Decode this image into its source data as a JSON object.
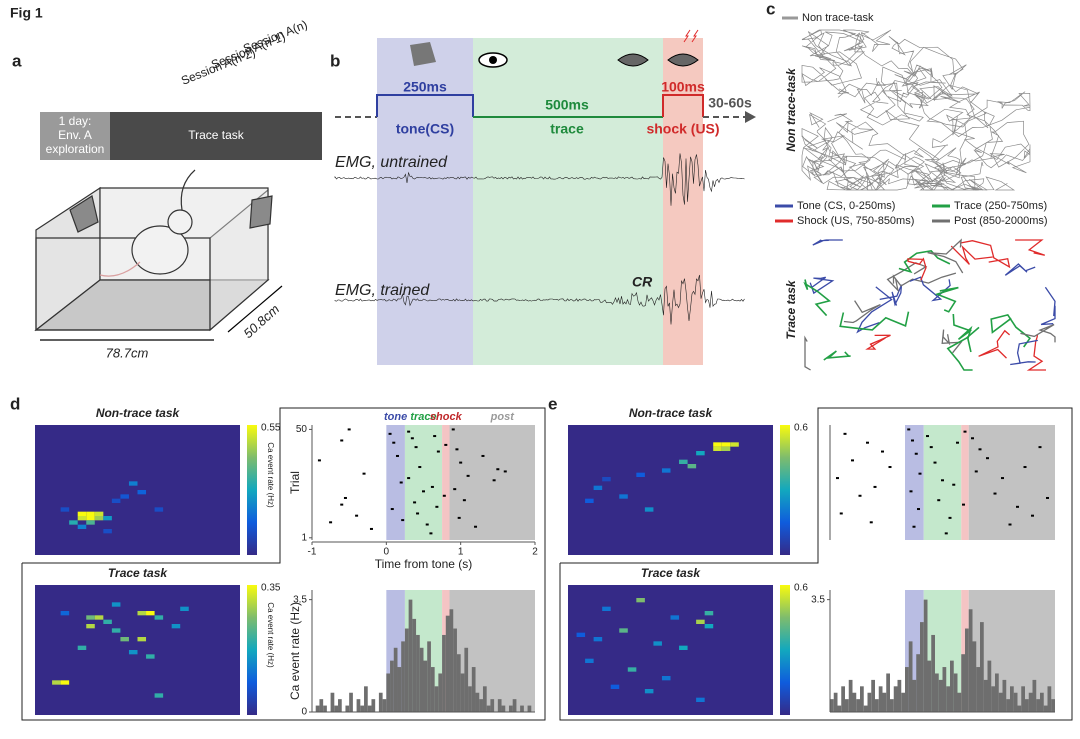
{
  "figure_title": "Fig 1",
  "panel_a": {
    "label": "a",
    "sessions": [
      "Session A(n-2)",
      "Session A(n-1)",
      "Session A(n)"
    ],
    "exploration": [
      "1 day:",
      "Env. A",
      "exploration"
    ],
    "task": "Trace task",
    "width": "78.7cm",
    "depth": "50.8cm"
  },
  "panel_b": {
    "label": "b",
    "durations": [
      "250ms",
      "500ms",
      "100ms",
      "30-60s"
    ],
    "phases": [
      "tone(CS)",
      "trace",
      "shock (US)"
    ],
    "emg": [
      "EMG, untrained",
      "EMG, trained"
    ],
    "cr": "CR"
  },
  "panel_c": {
    "label": "c",
    "legend_top": "Non trace-task",
    "row_labels": [
      "Non trace-task",
      "Trace task"
    ],
    "legend": [
      {
        "name": "Tone (CS, 0-250ms)",
        "color": "#3b4ba8"
      },
      {
        "name": "Trace (250-750ms)",
        "color": "#22a045"
      },
      {
        "name": "Shock (US, 750-850ms)",
        "color": "#e02b2b"
      },
      {
        "name": "Post (850-2000ms)",
        "color": "#707070"
      }
    ]
  },
  "panel_d": {
    "label": "d",
    "heatmaps": [
      {
        "title": "Non-trace task",
        "cbar_max": 0.55,
        "cbar_label": "Ca event rate (Hz)",
        "cells": [
          [
            5,
            20,
            0.55
          ],
          [
            6,
            20,
            0.55
          ],
          [
            7,
            20,
            0.5
          ],
          [
            5,
            21,
            0.5
          ],
          [
            6,
            21,
            0.55
          ],
          [
            7,
            21,
            0.45
          ],
          [
            4,
            22,
            0.3
          ],
          [
            8,
            21,
            0.25
          ],
          [
            6,
            22,
            0.35
          ],
          [
            5,
            23,
            0.2
          ],
          [
            11,
            13,
            0.2
          ],
          [
            12,
            15,
            0.15
          ],
          [
            10,
            16,
            0.12
          ],
          [
            9,
            17,
            0.1
          ],
          [
            14,
            19,
            0.1
          ],
          [
            3,
            19,
            0.1
          ],
          [
            8,
            24,
            0.1
          ]
        ]
      },
      {
        "title": "Trace task",
        "cbar_max": 0.35,
        "cbar_label": "Ca event rate (Hz)",
        "cells": [
          [
            3,
            6,
            0.1
          ],
          [
            6,
            7,
            0.25
          ],
          [
            7,
            7,
            0.3
          ],
          [
            8,
            8,
            0.2
          ],
          [
            12,
            6,
            0.3
          ],
          [
            13,
            6,
            0.35
          ],
          [
            14,
            7,
            0.2
          ],
          [
            6,
            9,
            0.3
          ],
          [
            9,
            10,
            0.2
          ],
          [
            16,
            9,
            0.15
          ],
          [
            10,
            12,
            0.25
          ],
          [
            12,
            12,
            0.3
          ],
          [
            5,
            14,
            0.2
          ],
          [
            11,
            15,
            0.15
          ],
          [
            13,
            16,
            0.2
          ],
          [
            2,
            22,
            0.3
          ],
          [
            3,
            22,
            0.35
          ],
          [
            14,
            25,
            0.2
          ],
          [
            17,
            5,
            0.15
          ],
          [
            9,
            4,
            0.15
          ]
        ]
      }
    ],
    "raster": {
      "xlim": [
        -1,
        2
      ],
      "xticks": [
        -1,
        0,
        1,
        2
      ],
      "xlabel": "Time from tone (s)",
      "ylabel": "Trial",
      "ylim": [
        0,
        52
      ],
      "yticks": [
        50,
        1
      ],
      "windows": [
        {
          "label": "tone",
          "start": 0,
          "end": 0.25,
          "color": "#b9bde3",
          "label_color": "#3b4ba8"
        },
        {
          "label": "trace",
          "start": 0.25,
          "end": 0.75,
          "color": "#c4e8cc",
          "label_color": "#22a045"
        },
        {
          "label": "shock",
          "start": 0.75,
          "end": 0.85,
          "color": "#f4c4c4",
          "label_color": "#c0282b"
        },
        {
          "label": "post",
          "start": 0.85,
          "end": 2,
          "color": "#c2c2c2",
          "label_color": "#9a9a9a"
        }
      ],
      "events": [
        [
          -0.5,
          50
        ],
        [
          -0.6,
          45
        ],
        [
          -0.9,
          36
        ],
        [
          -0.3,
          30
        ],
        [
          -0.55,
          19
        ],
        [
          -0.6,
          16
        ],
        [
          -0.4,
          11
        ],
        [
          -0.75,
          8
        ],
        [
          -0.2,
          5
        ],
        [
          0.05,
          48
        ],
        [
          0.1,
          44
        ],
        [
          0.15,
          38
        ],
        [
          0.2,
          26
        ],
        [
          0.08,
          14
        ],
        [
          0.22,
          9
        ],
        [
          0.3,
          49
        ],
        [
          0.35,
          46
        ],
        [
          0.4,
          42
        ],
        [
          0.45,
          33
        ],
        [
          0.3,
          28
        ],
        [
          0.5,
          22
        ],
        [
          0.38,
          17
        ],
        [
          0.42,
          12
        ],
        [
          0.55,
          7
        ],
        [
          0.6,
          3
        ],
        [
          0.65,
          47
        ],
        [
          0.7,
          40
        ],
        [
          0.62,
          24
        ],
        [
          0.68,
          15
        ],
        [
          0.8,
          43
        ],
        [
          0.78,
          20
        ],
        [
          0.9,
          50
        ],
        [
          0.95,
          41
        ],
        [
          1.0,
          35
        ],
        [
          1.1,
          29
        ],
        [
          0.92,
          23
        ],
        [
          1.05,
          18
        ],
        [
          0.98,
          10
        ],
        [
          1.2,
          6
        ],
        [
          1.3,
          38
        ],
        [
          1.5,
          32
        ],
        [
          1.45,
          27
        ],
        [
          1.6,
          31
        ]
      ]
    },
    "histogram": {
      "ylabel": "Ca event rate (Hz)",
      "ylim": [
        0,
        3.8
      ],
      "yticks": [
        3.5,
        0
      ],
      "counts": [
        0,
        0.2,
        0.4,
        0.2,
        0,
        0.6,
        0.2,
        0.4,
        0,
        0.2,
        0.6,
        0,
        0.4,
        0.2,
        0.8,
        0.2,
        0.4,
        0,
        0.6,
        0.4,
        1.2,
        1.6,
        2.0,
        1.4,
        2.2,
        2.6,
        3.5,
        2.9,
        2.4,
        2.0,
        1.6,
        2.2,
        1.4,
        0.8,
        1.2,
        2.4,
        3.0,
        3.2,
        2.6,
        1.8,
        1.2,
        2.0,
        0.8,
        1.4,
        0.6,
        0.4,
        0.8,
        0.2,
        0.4,
        0,
        0.4,
        0.2,
        0,
        0.2,
        0.4,
        0,
        0.2,
        0,
        0.2,
        0
      ]
    }
  },
  "panel_e": {
    "label": "e",
    "heatmaps": [
      {
        "title": "Non-trace task",
        "cbar_max": 0.6,
        "cells": [
          [
            17,
            4,
            0.6
          ],
          [
            18,
            4,
            0.6
          ],
          [
            19,
            4,
            0.55
          ],
          [
            17,
            5,
            0.55
          ],
          [
            18,
            5,
            0.5
          ],
          [
            15,
            6,
            0.3
          ],
          [
            13,
            8,
            0.35
          ],
          [
            14,
            9,
            0.4
          ],
          [
            8,
            11,
            0.15
          ],
          [
            3,
            14,
            0.2
          ],
          [
            6,
            16,
            0.2
          ],
          [
            2,
            17,
            0.15
          ],
          [
            9,
            19,
            0.25
          ],
          [
            4,
            12,
            0.1
          ],
          [
            11,
            10,
            0.2
          ]
        ]
      },
      {
        "title": "Trace task",
        "cbar_max": 0.6,
        "cells": [
          [
            8,
            3,
            0.45
          ],
          [
            4,
            5,
            0.2
          ],
          [
            16,
            6,
            0.35
          ],
          [
            12,
            7,
            0.2
          ],
          [
            15,
            8,
            0.5
          ],
          [
            6,
            10,
            0.4
          ],
          [
            16,
            9,
            0.3
          ],
          [
            3,
            12,
            0.2
          ],
          [
            10,
            13,
            0.25
          ],
          [
            13,
            14,
            0.3
          ],
          [
            2,
            17,
            0.2
          ],
          [
            7,
            19,
            0.35
          ],
          [
            11,
            21,
            0.2
          ],
          [
            5,
            23,
            0.15
          ],
          [
            9,
            24,
            0.25
          ],
          [
            15,
            26,
            0.2
          ],
          [
            1,
            11,
            0.15
          ]
        ]
      }
    ],
    "raster": {
      "xlim": [
        -1,
        2
      ],
      "ylim": [
        0,
        52
      ],
      "windows": [
        {
          "start": 0,
          "end": 0.25,
          "color": "#b9bde3"
        },
        {
          "start": 0.25,
          "end": 0.75,
          "color": "#c4e8cc"
        },
        {
          "start": 0.75,
          "end": 0.85,
          "color": "#f4c4c4"
        },
        {
          "start": 0.85,
          "end": 2,
          "color": "#c2c2c2"
        }
      ],
      "events": [
        [
          -0.8,
          48
        ],
        [
          -0.5,
          44
        ],
        [
          -0.3,
          40
        ],
        [
          -0.7,
          36
        ],
        [
          -0.2,
          33
        ],
        [
          -0.9,
          28
        ],
        [
          -0.4,
          24
        ],
        [
          -0.6,
          20
        ],
        [
          -0.85,
          12
        ],
        [
          -0.45,
          8
        ],
        [
          0.05,
          50
        ],
        [
          0.1,
          45
        ],
        [
          0.15,
          39
        ],
        [
          0.2,
          30
        ],
        [
          0.08,
          22
        ],
        [
          0.18,
          14
        ],
        [
          0.12,
          6
        ],
        [
          0.3,
          47
        ],
        [
          0.35,
          42
        ],
        [
          0.4,
          35
        ],
        [
          0.5,
          27
        ],
        [
          0.45,
          18
        ],
        [
          0.6,
          10
        ],
        [
          0.55,
          3
        ],
        [
          0.7,
          44
        ],
        [
          0.65,
          25
        ],
        [
          0.8,
          49
        ],
        [
          0.78,
          16
        ],
        [
          0.9,
          46
        ],
        [
          1.0,
          41
        ],
        [
          1.1,
          37
        ],
        [
          0.95,
          31
        ],
        [
          1.3,
          28
        ],
        [
          1.2,
          21
        ],
        [
          1.5,
          15
        ],
        [
          1.7,
          11
        ],
        [
          1.4,
          7
        ],
        [
          1.9,
          19
        ],
        [
          1.6,
          33
        ],
        [
          1.8,
          42
        ]
      ]
    },
    "histogram": {
      "ylim": [
        0,
        3.8
      ],
      "yticks": [
        3.5
      ],
      "counts": [
        0.4,
        0.6,
        0.2,
        0.8,
        0.4,
        1.0,
        0.6,
        0.4,
        0.8,
        0.2,
        0.6,
        1.0,
        0.4,
        0.8,
        0.6,
        1.2,
        0.4,
        0.8,
        1.0,
        0.6,
        1.4,
        2.2,
        1.0,
        1.8,
        2.8,
        3.5,
        1.6,
        2.4,
        1.2,
        1.0,
        1.4,
        0.8,
        1.6,
        1.2,
        0.6,
        1.8,
        2.6,
        3.2,
        2.2,
        1.4,
        2.8,
        1.0,
        1.6,
        0.8,
        1.2,
        0.6,
        1.0,
        0.4,
        0.8,
        0.6,
        0.2,
        0.8,
        0.4,
        0.6,
        1.0,
        0.4,
        0.6,
        0.2,
        0.8,
        0.4
      ]
    }
  }
}
